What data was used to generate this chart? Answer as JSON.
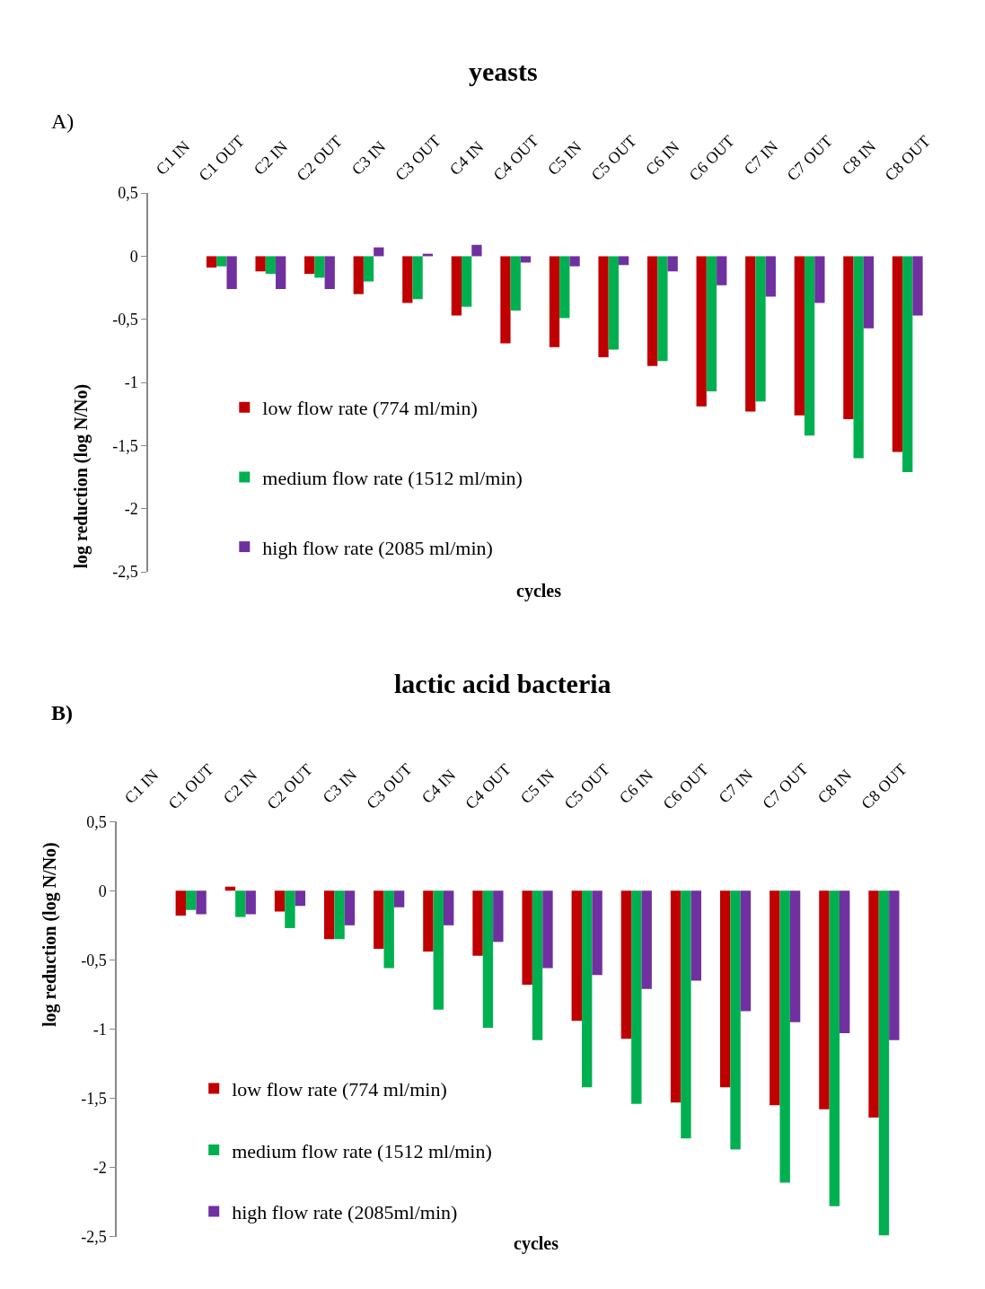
{
  "chart_data": [
    {
      "type": "bar",
      "title": "yeasts",
      "xlabel": "cycles",
      "ylabel": "log reduction (log N/No)",
      "annotations": [
        "A)"
      ],
      "categories": [
        "C1 IN",
        "C1 OUT",
        "C2 IN",
        "C2 OUT",
        "C3 IN",
        "C3 OUT",
        "C4 IN",
        "C4 OUT",
        "C5 IN",
        "C5 OUT",
        "C6 IN",
        "C6 OUT",
        "C7 IN",
        "C7 OUT",
        "C8 IN",
        "C8 OUT"
      ],
      "series": [
        {
          "name": "low flow rate (774 ml/min)",
          "color": "#c00000",
          "values": [
            null,
            -0.09,
            -0.12,
            -0.14,
            -0.3,
            -0.37,
            -0.47,
            -0.69,
            -0.72,
            -0.8,
            -0.87,
            -1.19,
            -1.23,
            -1.26,
            -1.29,
            -1.55
          ]
        },
        {
          "name": "medium flow rate (1512 ml/min)",
          "color": "#00b050",
          "values": [
            null,
            -0.08,
            -0.14,
            -0.17,
            -0.2,
            -0.34,
            -0.4,
            -0.43,
            -0.49,
            -0.74,
            -0.83,
            -1.07,
            -1.15,
            -1.42,
            -1.6,
            -1.71
          ]
        },
        {
          "name": "high flow rate (2085 ml/min)",
          "color": "#7030a0",
          "values": [
            null,
            -0.26,
            -0.26,
            -0.26,
            0.07,
            0.02,
            0.09,
            -0.05,
            -0.08,
            -0.07,
            -0.12,
            -0.23,
            -0.32,
            -0.37,
            -0.57,
            -0.47
          ]
        }
      ],
      "ylim": [
        -2.5,
        0.5
      ],
      "yticks": [
        {
          "value": 0.5,
          "label": "0,5"
        },
        0,
        {
          "value": -0.5,
          "label": "-0,5"
        },
        -1,
        {
          "value": -1.5,
          "label": "-1,5"
        },
        -2,
        {
          "value": -2.5,
          "label": "-2,5"
        }
      ],
      "grid": false,
      "legend": "bottom left"
    },
    {
      "type": "bar",
      "title": "lactic acid bacteria",
      "xlabel": "cycles",
      "ylabel": "log reduction (log N/No)",
      "annotations": [
        "B)"
      ],
      "categories": [
        "C1 IN",
        "C1 OUT",
        "C2 IN",
        "C2 OUT",
        "C3 IN",
        "C3 OUT",
        "C4 IN",
        "C4 OUT",
        "C5 IN",
        "C5 OUT",
        "C6 IN",
        "C6 OUT",
        "C7 IN",
        "C7 OUT",
        "C8 IN",
        "C8 OUT"
      ],
      "series": [
        {
          "name": "low flow rate (774 ml/min)",
          "color": "#c00000",
          "values": [
            null,
            -0.18,
            0.03,
            -0.15,
            -0.35,
            -0.42,
            -0.44,
            -0.47,
            -0.68,
            -0.94,
            -1.07,
            -1.53,
            -1.42,
            -1.55,
            -1.58,
            -1.64
          ]
        },
        {
          "name": "medium flow rate (1512 ml/min)",
          "color": "#00b050",
          "values": [
            null,
            -0.14,
            -0.19,
            -0.27,
            -0.35,
            -0.56,
            -0.86,
            -0.99,
            -1.08,
            -1.42,
            -1.54,
            -1.79,
            -1.87,
            -2.11,
            -2.28,
            -2.49
          ]
        },
        {
          "name": "high flow rate (2085ml/min)",
          "color": "#7030a0",
          "values": [
            null,
            -0.17,
            -0.17,
            -0.11,
            -0.25,
            -0.12,
            -0.25,
            -0.37,
            -0.56,
            -0.61,
            -0.71,
            -0.65,
            -0.87,
            -0.95,
            -1.03,
            -1.08
          ]
        }
      ],
      "ylim": [
        -2.5,
        0.5
      ],
      "yticks": [
        {
          "value": 0.5,
          "label": "0,5"
        },
        0,
        {
          "value": -0.5,
          "label": "-0,5"
        },
        -1,
        {
          "value": -1.5,
          "label": "-1,5"
        },
        -2,
        {
          "value": -2.5,
          "label": "-2,5"
        }
      ],
      "grid": false,
      "legend": "bottom left"
    }
  ]
}
